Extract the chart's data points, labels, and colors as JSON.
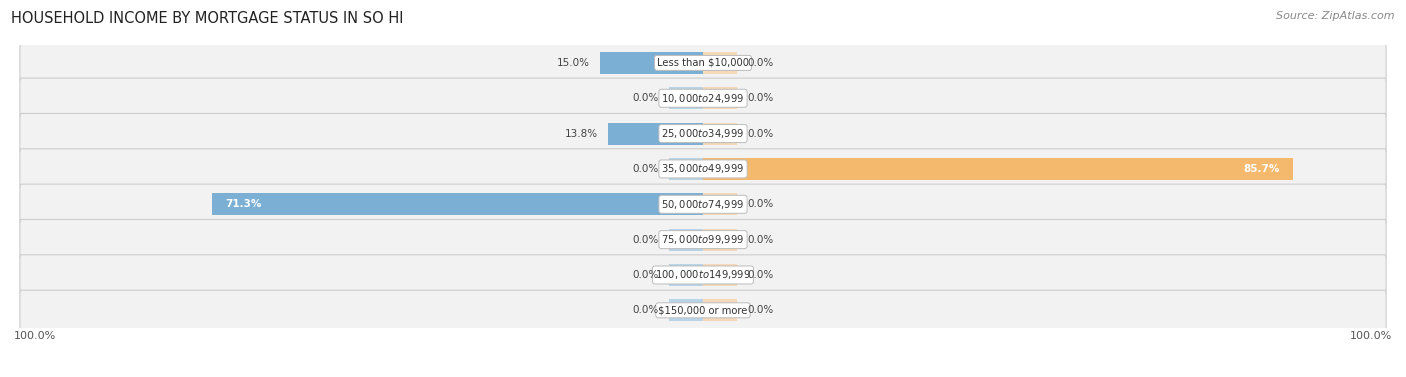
{
  "title": "HOUSEHOLD INCOME BY MORTGAGE STATUS IN SO HI",
  "source": "Source: ZipAtlas.com",
  "categories": [
    "Less than $10,000",
    "$10,000 to $24,999",
    "$25,000 to $34,999",
    "$35,000 to $49,999",
    "$50,000 to $74,999",
    "$75,000 to $99,999",
    "$100,000 to $149,999",
    "$150,000 or more"
  ],
  "without_mortgage": [
    15.0,
    0.0,
    13.8,
    0.0,
    71.3,
    0.0,
    0.0,
    0.0
  ],
  "with_mortgage": [
    0.0,
    0.0,
    0.0,
    85.7,
    0.0,
    0.0,
    0.0,
    0.0
  ],
  "color_without": "#7BAFD4",
  "color_with": "#F5B96E",
  "color_without_stub": "#B8D4E8",
  "color_with_stub": "#F5D9B8",
  "row_bg": "#EFEFEF",
  "row_border": "#DDDDDD",
  "x_left_label": "100.0%",
  "x_right_label": "100.0%",
  "max_val": 100.0,
  "stub_val": 5.0
}
